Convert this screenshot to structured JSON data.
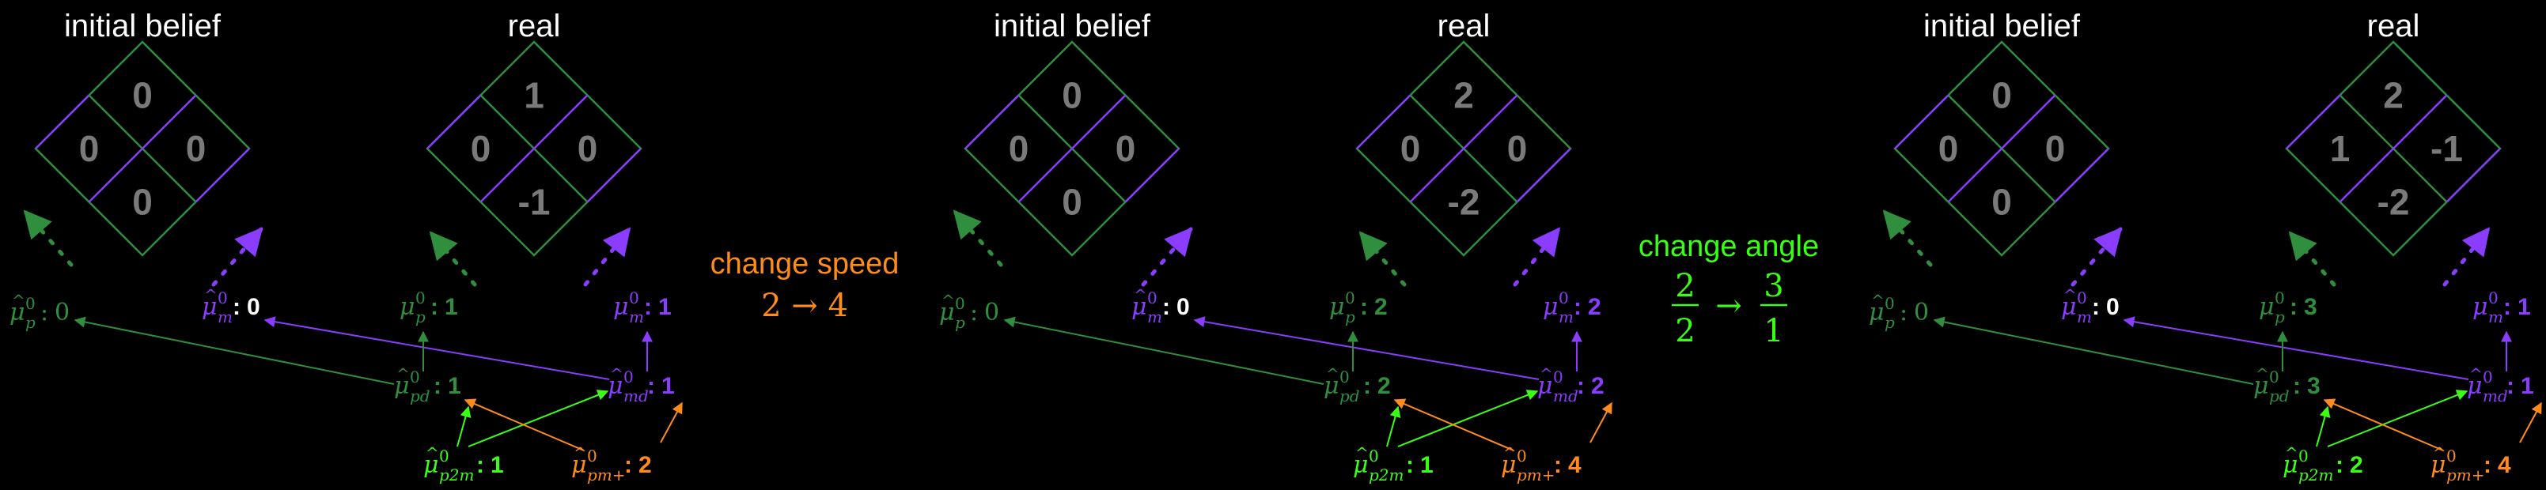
{
  "colors": {
    "green": "#2f8f3f",
    "purple": "#8a3cff",
    "lime": "#39ff14",
    "orange": "#ff8c1a",
    "grey": "#7a7a7a",
    "white": "#ffffff"
  },
  "headers": {
    "initial": "initial belief",
    "real": "real"
  },
  "symbols": {
    "colon": ":",
    "zero": "0",
    "arrow": "→"
  },
  "panels": [
    {
      "initial": {
        "top": "0",
        "left": "0",
        "right": "0",
        "bottom": "0"
      },
      "real": {
        "top": "1",
        "left": "0",
        "right": "0",
        "bottom": "-1"
      },
      "labels": {
        "hp": "0",
        "hm": "0",
        "p": "1",
        "m": "1",
        "pd": "1",
        "md": "1",
        "p2m": "1",
        "pm": "2"
      }
    },
    {
      "initial": {
        "top": "0",
        "left": "0",
        "right": "0",
        "bottom": "0"
      },
      "real": {
        "top": "2",
        "left": "0",
        "right": "0",
        "bottom": "-2"
      },
      "labels": {
        "hp": "0",
        "hm": "0",
        "p": "2",
        "m": "2",
        "pd": "2",
        "md": "2",
        "p2m": "1",
        "pm": "4"
      }
    },
    {
      "initial": {
        "top": "0",
        "left": "0",
        "right": "0",
        "bottom": "0"
      },
      "real": {
        "top": "2",
        "left": "1",
        "right": "-1",
        "bottom": "-2"
      },
      "labels": {
        "hp": "0",
        "hm": "0",
        "p": "3",
        "m": "1",
        "pd": "3",
        "md": "1",
        "p2m": "2",
        "pm": "4"
      }
    }
  ],
  "changes": [
    {
      "title": "change speed",
      "from": "2",
      "to": "4"
    },
    {
      "title": "change angle",
      "from_num": "2",
      "from_den": "2",
      "to_num": "3",
      "to_den": "1"
    }
  ]
}
